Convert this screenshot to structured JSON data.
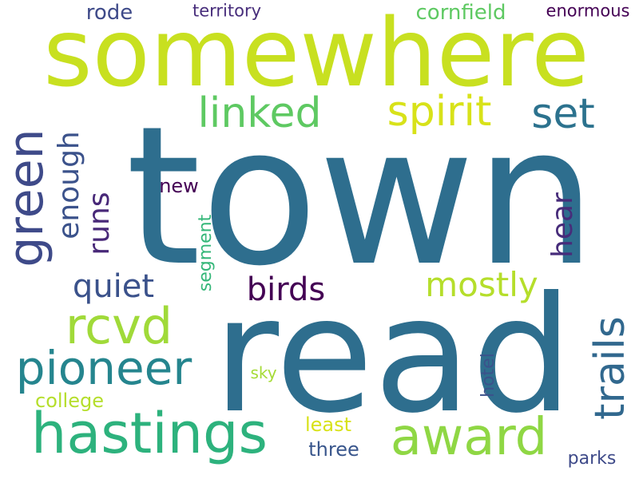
{
  "words": [
    {
      "key": "town",
      "text": "town",
      "color": "#2e6e8e"
    },
    {
      "key": "read",
      "text": "read",
      "color": "#2e6e8e"
    },
    {
      "key": "somewhere",
      "text": "somewhere",
      "color": "#c8e020"
    },
    {
      "key": "hastings",
      "text": "hastings",
      "color": "#2db27d"
    },
    {
      "key": "award",
      "text": "award",
      "color": "#8fd744"
    },
    {
      "key": "green",
      "text": "green",
      "color": "#3e4a89"
    },
    {
      "key": "rcvd",
      "text": "rcvd",
      "color": "#a0da39"
    },
    {
      "key": "pioneer",
      "text": "pioneer",
      "color": "#25858e"
    },
    {
      "key": "linked",
      "text": "linked",
      "color": "#5ec962"
    },
    {
      "key": "spirit",
      "text": "spirit",
      "color": "#d8e219"
    },
    {
      "key": "set",
      "text": "set",
      "color": "#2c728e"
    },
    {
      "key": "trails",
      "text": "trails",
      "color": "#31688e"
    },
    {
      "key": "mostly",
      "text": "mostly",
      "color": "#b5de2b"
    },
    {
      "key": "birds",
      "text": "birds",
      "color": "#440154"
    },
    {
      "key": "quiet",
      "text": "quiet",
      "color": "#3b528b"
    },
    {
      "key": "enough",
      "text": "enough",
      "color": "#3b528b"
    },
    {
      "key": "runs",
      "text": "runs",
      "color": "#482878"
    },
    {
      "key": "hear",
      "text": "hear",
      "color": "#472c7a"
    },
    {
      "key": "cornfield",
      "text": "cornfield",
      "color": "#5ec962"
    },
    {
      "key": "rode",
      "text": "rode",
      "color": "#3e4a89"
    },
    {
      "key": "territory",
      "text": "territory",
      "color": "#472d7b"
    },
    {
      "key": "enormous",
      "text": "enormous",
      "color": "#440154"
    },
    {
      "key": "new",
      "text": "new",
      "color": "#440154"
    },
    {
      "key": "segment",
      "text": "segment",
      "color": "#35b779"
    },
    {
      "key": "college",
      "text": "college",
      "color": "#b5de2b"
    },
    {
      "key": "sky",
      "text": "sky",
      "color": "#a5db36"
    },
    {
      "key": "hotel",
      "text": "hotel",
      "color": "#3b528b"
    },
    {
      "key": "least",
      "text": "least",
      "color": "#d8e219"
    },
    {
      "key": "three",
      "text": "three",
      "color": "#39568c"
    },
    {
      "key": "parks",
      "text": "parks",
      "color": "#3e4a89"
    }
  ]
}
